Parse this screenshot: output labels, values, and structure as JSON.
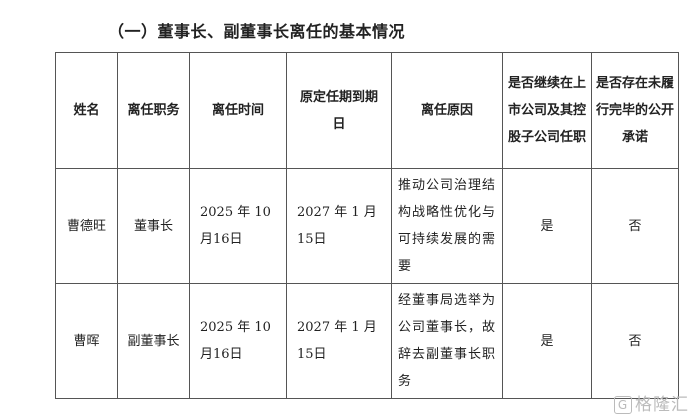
{
  "title": "（一）董事长、副董事长离任的基本情况",
  "table": {
    "headers": [
      "姓名",
      "离任职务",
      "离任时间",
      "原定任期到期日",
      "离任原因",
      "是否继续在上市公司及其控股子公司任职",
      "是否存在未履行完毕的公开承诺"
    ],
    "rows": [
      {
        "name": "曹德旺",
        "position": "董事长",
        "leave_date": "2025 年 10 月16日",
        "term_end": "2027 年 1 月15日",
        "reason": "推动公司治理结构战略性优化与可持续发展的需要",
        "continue": "是",
        "commitment": "否"
      },
      {
        "name": "曹晖",
        "position": "副董事长",
        "leave_date": "2025 年 10 月16日",
        "term_end": "2027 年 1 月15日",
        "reason": "经董事局选举为公司董事长，故辞去副董事长职务",
        "continue": "是",
        "commitment": "否"
      }
    ]
  },
  "watermark": {
    "text": "格隆汇",
    "logo": "G"
  }
}
